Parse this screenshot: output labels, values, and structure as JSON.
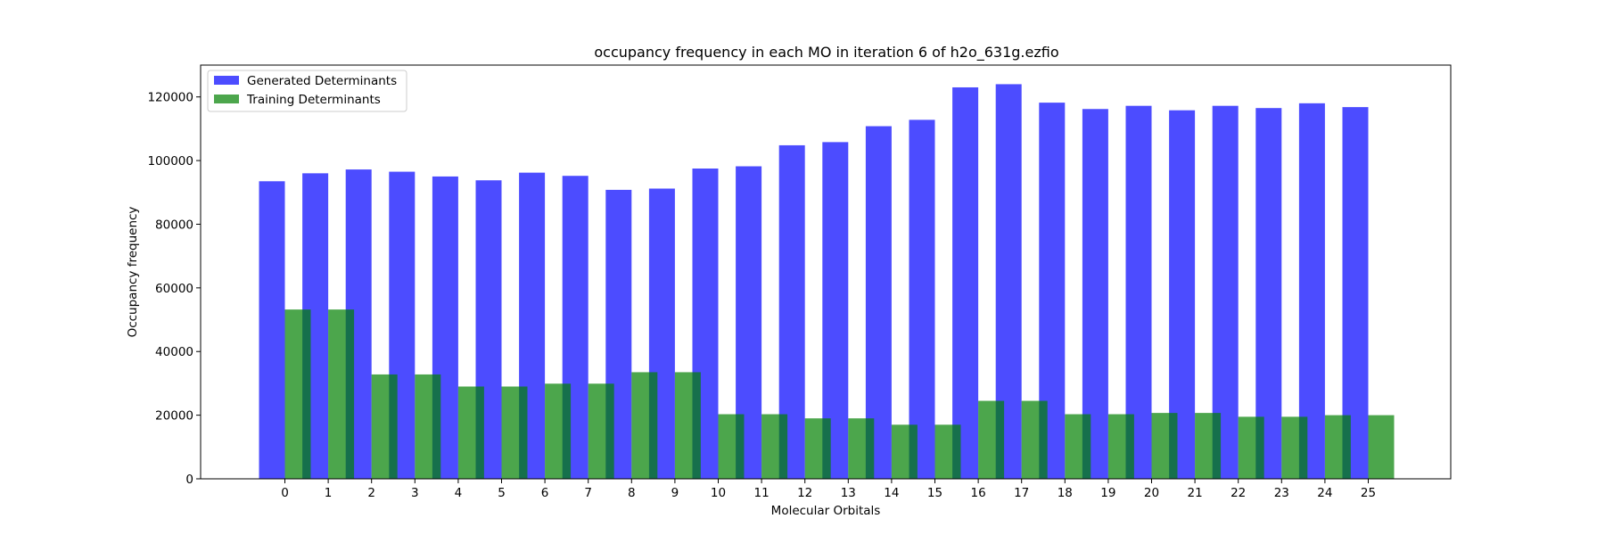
{
  "chart_data": {
    "type": "bar",
    "title": "occupancy frequency in each MO in iteration 6 of h2o_631g.ezfio",
    "xlabel": "Molecular Orbitals",
    "ylabel": "Occupancy frequency",
    "categories": [
      "0",
      "1",
      "2",
      "3",
      "4",
      "5",
      "6",
      "7",
      "8",
      "9",
      "10",
      "11",
      "12",
      "13",
      "14",
      "15",
      "16",
      "17",
      "18",
      "19",
      "20",
      "21",
      "22",
      "23",
      "24",
      "25"
    ],
    "yticks": [
      "0",
      "20000",
      "40000",
      "60000",
      "80000",
      "100000",
      "120000"
    ],
    "ylim": [
      0,
      130000
    ],
    "grid": false,
    "legend_position": "top-left",
    "series": [
      {
        "name": "Generated Determinants",
        "color": "#0000ff",
        "opacity": 0.7,
        "values": [
          93500,
          96000,
          97200,
          96500,
          95000,
          93800,
          96200,
          95200,
          90800,
          91200,
          97500,
          98200,
          104800,
          105800,
          110800,
          112800,
          123000,
          124000,
          118200,
          116200,
          117200,
          115800,
          117200,
          116500,
          118000,
          116800
        ]
      },
      {
        "name": "Training Determinants",
        "color": "#008000",
        "opacity": 0.7,
        "values": [
          53200,
          53200,
          32800,
          32800,
          29000,
          29000,
          29900,
          29900,
          33500,
          33500,
          20300,
          20300,
          19000,
          19000,
          17000,
          17000,
          24500,
          24500,
          20300,
          20300,
          20700,
          20700,
          19500,
          19500,
          20000,
          20000
        ]
      }
    ]
  }
}
